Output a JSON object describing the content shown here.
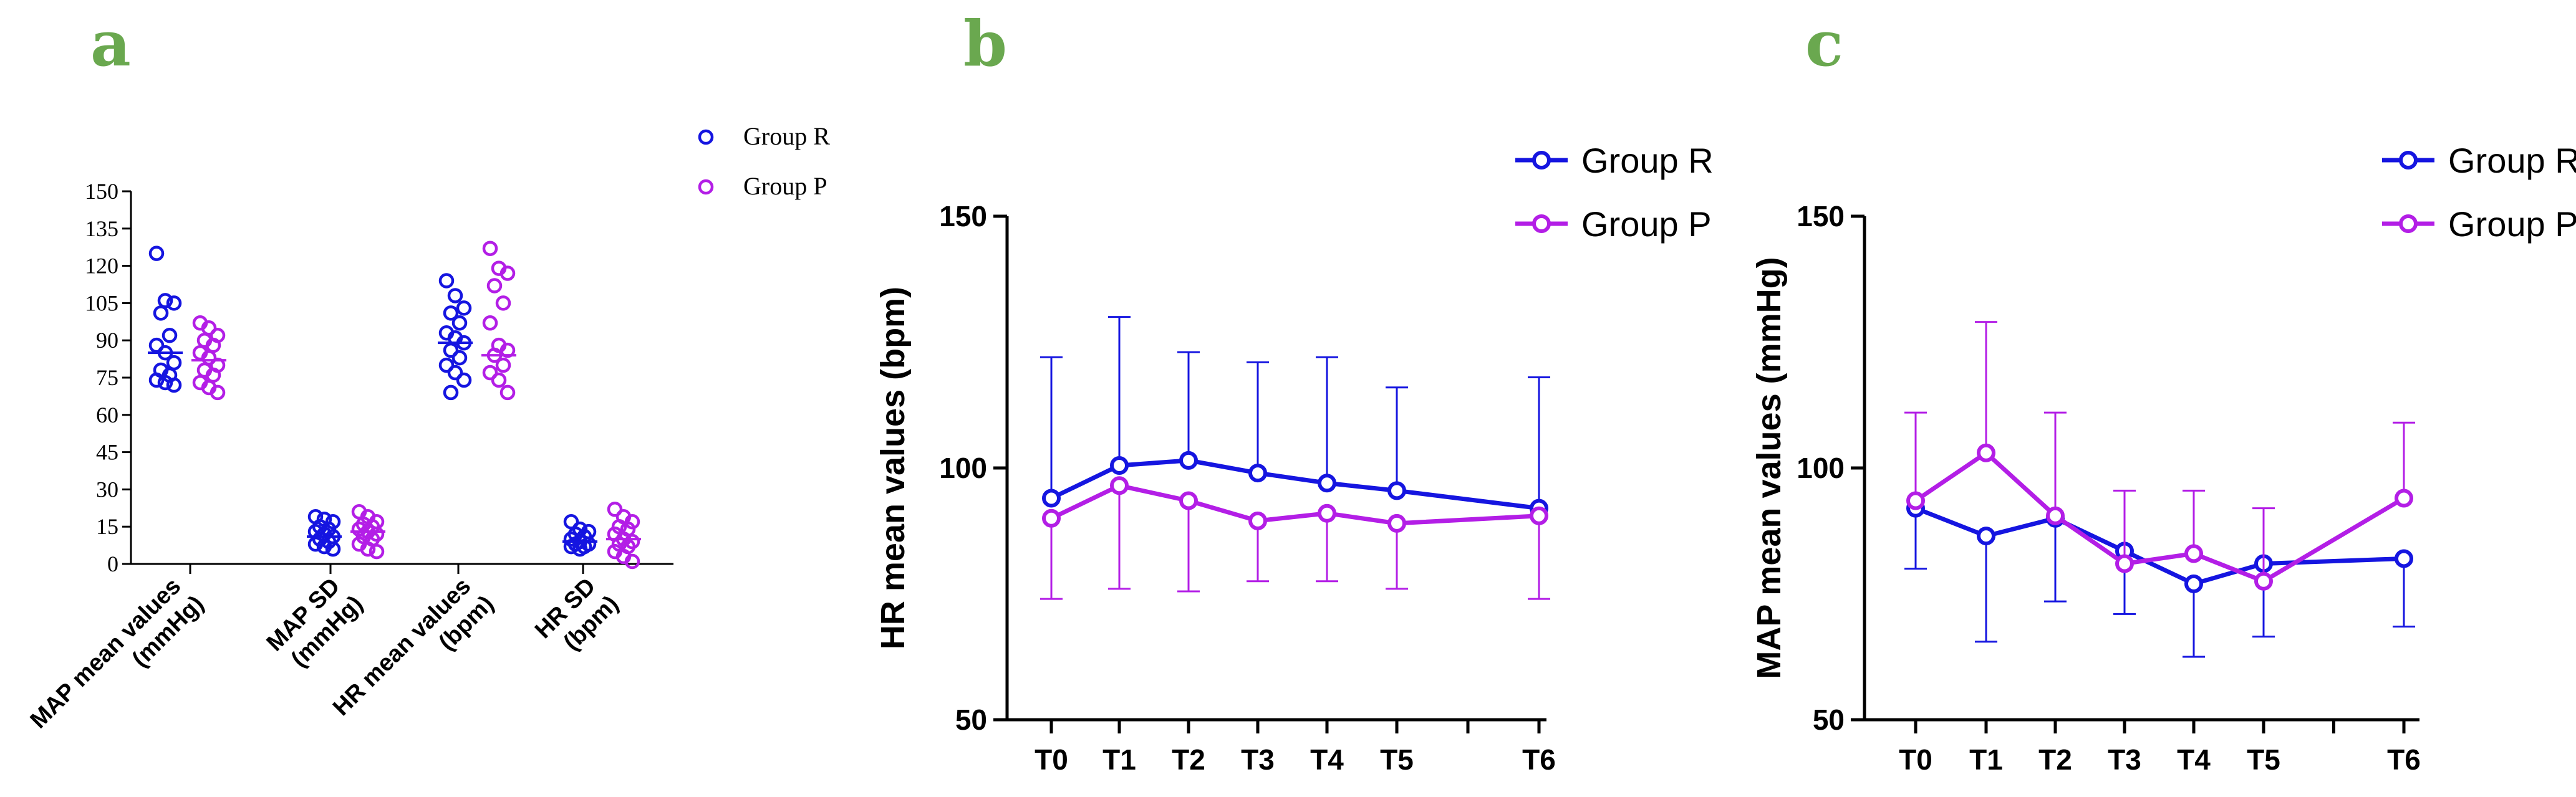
{
  "colors": {
    "group_r": "#1515e0",
    "group_p": "#b31ee6",
    "panel_letter": "#6aa84f",
    "axis": "#000000"
  },
  "chart_data": [
    {
      "panel": "a",
      "type": "scatter",
      "categories": [
        "MAP mean values (mmHg)",
        "MAP SD (mmHg)",
        "HR mean values (bpm)",
        "HR SD (bpm)"
      ],
      "category_lines": [
        [
          "MAP mean values",
          "(mmHg)"
        ],
        [
          "MAP SD",
          "(mmHg)"
        ],
        [
          "HR mean values",
          "(bpm)"
        ],
        [
          "HR SD",
          "(bpm)"
        ]
      ],
      "yticks": [
        0,
        15,
        30,
        45,
        60,
        75,
        90,
        105,
        120,
        135,
        150
      ],
      "ylim": [
        0,
        150
      ],
      "legend": [
        "Group R",
        "Group P"
      ],
      "series": [
        {
          "name": "Group R",
          "means": [
            85,
            11,
            89,
            9
          ],
          "points": [
            [
              125,
              106,
              105,
              101,
              92,
              88,
              85,
              81,
              78,
              76,
              74,
              73,
              72
            ],
            [
              19,
              18,
              17,
              15,
              14,
              13,
              12,
              11,
              10,
              9,
              8,
              7,
              6
            ],
            [
              114,
              108,
              103,
              101,
              97,
              93,
              91,
              89,
              86,
              83,
              80,
              77,
              74,
              69
            ],
            [
              17,
              14,
              13,
              12,
              11,
              10,
              9,
              8,
              8,
              7,
              7,
              6
            ]
          ]
        },
        {
          "name": "Group P",
          "means": [
            82,
            13,
            84,
            10
          ],
          "points": [
            [
              97,
              95,
              92,
              90,
              88,
              85,
              83,
              80,
              78,
              76,
              73,
              71,
              69
            ],
            [
              21,
              19,
              17,
              16,
              15,
              14,
              13,
              12,
              11,
              10,
              8,
              6,
              5
            ],
            [
              127,
              119,
              117,
              112,
              105,
              97,
              88,
              86,
              84,
              80,
              77,
              74,
              69
            ],
            [
              22,
              19,
              17,
              15,
              14,
              12,
              10,
              9,
              8,
              7,
              5,
              3,
              1
            ]
          ]
        }
      ]
    },
    {
      "panel": "b",
      "type": "line",
      "x": [
        "T0",
        "T1",
        "T2",
        "T3",
        "T4",
        "T5",
        "T6"
      ],
      "ylabel": "HR mean values (bpm)",
      "yticks": [
        50,
        100,
        150
      ],
      "ylim": [
        50,
        150
      ],
      "legend": [
        "Group R",
        "Group P"
      ],
      "series": [
        {
          "name": "Group R",
          "values": [
            94,
            100.5,
            101.5,
            99,
            97,
            95.5,
            92
          ],
          "err_upper": [
            122,
            130,
            123,
            121,
            122,
            116,
            118
          ],
          "err_lower": []
        },
        {
          "name": "Group P",
          "values": [
            90,
            96.5,
            93.5,
            89.5,
            91,
            89,
            90.5
          ],
          "err_upper": [],
          "err_lower": [
            74,
            76,
            75.5,
            77.5,
            77.5,
            76,
            74
          ]
        }
      ]
    },
    {
      "panel": "c",
      "type": "line",
      "x": [
        "T0",
        "T1",
        "T2",
        "T3",
        "T4",
        "T5",
        "T6"
      ],
      "ylabel": "MAP mean values (mmHg)",
      "yticks": [
        50,
        100,
        150
      ],
      "ylim": [
        50,
        150
      ],
      "legend": [
        "Group R",
        "Group P"
      ],
      "series": [
        {
          "name": "Group R",
          "values": [
            92,
            86.5,
            90,
            83.5,
            77,
            81,
            82
          ],
          "err_upper": [],
          "err_lower": [
            80,
            65.5,
            73.5,
            71,
            62.5,
            66.5,
            68.5
          ]
        },
        {
          "name": "Group P",
          "values": [
            93.5,
            103,
            90.5,
            81,
            83,
            77.5,
            94
          ],
          "err_upper": [
            111,
            129,
            111,
            95.5,
            95.5,
            92,
            109
          ],
          "err_lower": []
        }
      ]
    }
  ]
}
